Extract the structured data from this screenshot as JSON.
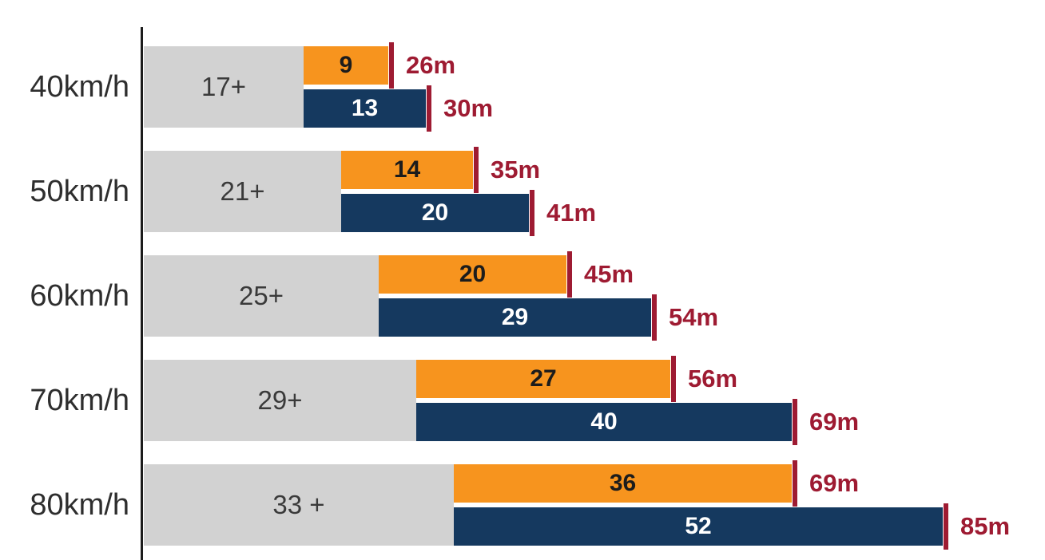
{
  "colors": {
    "base_bar": "#d2d2d2",
    "orange_bar": "#f7941e",
    "navy_bar": "#15395f",
    "total_marker": "#9e1b32",
    "axis": "#1c1c1c",
    "speed_label_text": "#2e2e2e",
    "base_label_text": "#3a3a3a",
    "orange_value_text": "#1c1c1c",
    "navy_value_text": "#ffffff"
  },
  "chart_data": {
    "type": "bar",
    "orientation": "horizontal",
    "title": "",
    "xlabel": "",
    "ylabel": "",
    "x_unit": "m",
    "xlim": [
      0,
      95
    ],
    "grid": false,
    "legend": "none",
    "categories": [
      "40km/h",
      "50km/h",
      "60km/h",
      "70km/h",
      "80km/h"
    ],
    "series": [
      {
        "name": "gray-base-segment",
        "labels": [
          "17+",
          "21+",
          "25+",
          "29+",
          "33 +"
        ],
        "values": [
          17,
          21,
          25,
          29,
          33
        ],
        "color": "#d2d2d2"
      },
      {
        "name": "orange-segment",
        "values": [
          9,
          14,
          20,
          27,
          36
        ],
        "color": "#f7941e"
      },
      {
        "name": "navy-segment",
        "values": [
          13,
          20,
          29,
          40,
          52
        ],
        "color": "#15395f"
      }
    ],
    "totals": {
      "orange": [
        "26m",
        "35m",
        "45m",
        "56m",
        "69m"
      ],
      "navy": [
        "30m",
        "41m",
        "54m",
        "69m",
        "85m"
      ]
    }
  }
}
